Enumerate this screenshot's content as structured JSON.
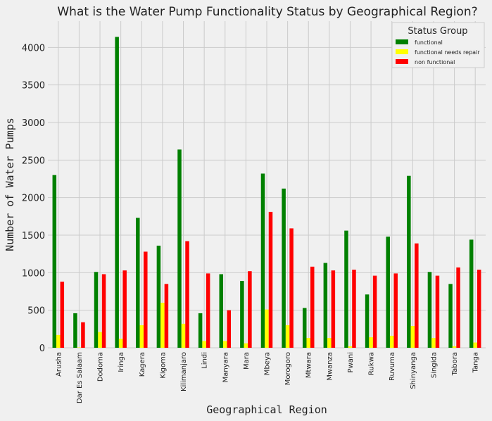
{
  "chart_data": {
    "type": "bar",
    "title": "What is the Water Pump Functionality Status by Geographical Region?",
    "xlabel": "Geographical Region",
    "ylabel": "Number of Water Pumps",
    "ylim": [
      0,
      4350
    ],
    "yticks": [
      0,
      500,
      1000,
      1500,
      2000,
      2500,
      3000,
      3500,
      4000
    ],
    "grid": true,
    "legend": {
      "title": "Status Group",
      "placement": "top-right"
    },
    "categories": [
      "Arusha",
      "Dar Es Salaam",
      "Dodoma",
      "Iringa",
      "Kagera",
      "Kigoma",
      "Kilimanjaro",
      "Lindi",
      "Manyara",
      "Mara",
      "Mbeya",
      "Morogoro",
      "Mtwara",
      "Mwanza",
      "Pwani",
      "Rukwa",
      "Ruvuma",
      "Shinyanga",
      "Singida",
      "Tabora",
      "Tanga"
    ],
    "series": [
      {
        "name": "functional",
        "color": "#008000",
        "values": [
          2300,
          460,
          1010,
          4140,
          1730,
          1360,
          2640,
          460,
          980,
          890,
          2320,
          2120,
          530,
          1130,
          1560,
          710,
          1480,
          2290,
          1010,
          850,
          1440
        ]
      },
      {
        "name": "functional needs repair",
        "color": "#ffff00",
        "values": [
          170,
          5,
          210,
          120,
          300,
          600,
          320,
          90,
          90,
          60,
          510,
          300,
          130,
          130,
          20,
          140,
          160,
          290,
          130,
          20,
          70
        ]
      },
      {
        "name": "non functional",
        "color": "#ff0000",
        "values": [
          880,
          340,
          980,
          1030,
          1280,
          850,
          1420,
          990,
          500,
          1020,
          1810,
          1590,
          1080,
          1030,
          1040,
          960,
          990,
          1390,
          960,
          1070,
          1040
        ]
      }
    ]
  }
}
